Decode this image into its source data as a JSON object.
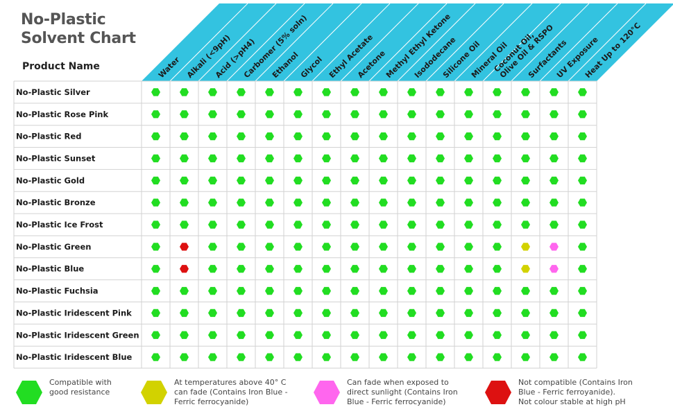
{
  "title_lines": [
    "No-Plastic",
    "Solvent Chart"
  ],
  "product_header": "Product Name",
  "colors": {
    "header_band": "#33c3e0",
    "grid": "#d2d2d2",
    "compatible": "#22dd22",
    "heat": "#d2d200",
    "sunlight": "#ff66ee",
    "incompatible": "#dd1111"
  },
  "chart_data": {
    "type": "table",
    "columns": [
      "Water",
      "Alkali (<9pH)",
      "Acid (>pH4)",
      "Carbomer (5% soln)",
      "Ethanol",
      "Glycol",
      "Ethyl Acetate",
      "Acetone",
      "Methyl Ethyl Ketone",
      "Isododecane",
      "Silicone Oil",
      "Mineral Oil",
      "Coconut Oil,\nOlive Oil & RSPO",
      "Surfactants",
      "UV Exposure",
      "Heat Up to 120°C"
    ],
    "rows": [
      {
        "product": "No-Plastic Silver",
        "status": [
          "C",
          "C",
          "C",
          "C",
          "C",
          "C",
          "C",
          "C",
          "C",
          "C",
          "C",
          "C",
          "C",
          "C",
          "C",
          "C"
        ]
      },
      {
        "product": "No-Plastic Rose Pink",
        "status": [
          "C",
          "C",
          "C",
          "C",
          "C",
          "C",
          "C",
          "C",
          "C",
          "C",
          "C",
          "C",
          "C",
          "C",
          "C",
          "C"
        ]
      },
      {
        "product": "No-Plastic Red",
        "status": [
          "C",
          "C",
          "C",
          "C",
          "C",
          "C",
          "C",
          "C",
          "C",
          "C",
          "C",
          "C",
          "C",
          "C",
          "C",
          "C"
        ]
      },
      {
        "product": "No-Plastic Sunset",
        "status": [
          "C",
          "C",
          "C",
          "C",
          "C",
          "C",
          "C",
          "C",
          "C",
          "C",
          "C",
          "C",
          "C",
          "C",
          "C",
          "C"
        ]
      },
      {
        "product": "No-Plastic Gold",
        "status": [
          "C",
          "C",
          "C",
          "C",
          "C",
          "C",
          "C",
          "C",
          "C",
          "C",
          "C",
          "C",
          "C",
          "C",
          "C",
          "C"
        ]
      },
      {
        "product": "No-Plastic Bronze",
        "status": [
          "C",
          "C",
          "C",
          "C",
          "C",
          "C",
          "C",
          "C",
          "C",
          "C",
          "C",
          "C",
          "C",
          "C",
          "C",
          "C"
        ]
      },
      {
        "product": "No-Plastic Ice Frost",
        "status": [
          "C",
          "C",
          "C",
          "C",
          "C",
          "C",
          "C",
          "C",
          "C",
          "C",
          "C",
          "C",
          "C",
          "C",
          "C",
          "C"
        ]
      },
      {
        "product": "No-Plastic Green",
        "status": [
          "C",
          "N",
          "C",
          "C",
          "C",
          "C",
          "C",
          "C",
          "C",
          "C",
          "C",
          "C",
          "C",
          "H",
          "S",
          "C"
        ]
      },
      {
        "product": "No-Plastic Blue",
        "status": [
          "C",
          "N",
          "C",
          "C",
          "C",
          "C",
          "C",
          "C",
          "C",
          "C",
          "C",
          "C",
          "C",
          "H",
          "S",
          "C"
        ]
      },
      {
        "product": "No-Plastic Fuchsia",
        "status": [
          "C",
          "C",
          "C",
          "C",
          "C",
          "C",
          "C",
          "C",
          "C",
          "C",
          "C",
          "C",
          "C",
          "C",
          "C",
          "C"
        ]
      },
      {
        "product": "No-Plastic Iridescent Pink",
        "status": [
          "C",
          "C",
          "C",
          "C",
          "C",
          "C",
          "C",
          "C",
          "C",
          "C",
          "C",
          "C",
          "C",
          "C",
          "C",
          "C"
        ]
      },
      {
        "product": "No-Plastic Iridescent Green",
        "status": [
          "C",
          "C",
          "C",
          "C",
          "C",
          "C",
          "C",
          "C",
          "C",
          "C",
          "C",
          "C",
          "C",
          "C",
          "C",
          "C"
        ]
      },
      {
        "product": "No-Plastic Iridescent Blue",
        "status": [
          "C",
          "C",
          "C",
          "C",
          "C",
          "C",
          "C",
          "C",
          "C",
          "C",
          "C",
          "C",
          "C",
          "C",
          "C",
          "C"
        ]
      }
    ]
  },
  "legend": [
    {
      "key": "C",
      "text": "Compatible with\ngood resistance"
    },
    {
      "key": "H",
      "text": "At temperatures above 40° C\ncan fade (Contains Iron Blue -\nFerric ferrocyanide)"
    },
    {
      "key": "S",
      "text": "Can fade when exposed to\ndirect sunlight  (Contains Iron\nBlue - Ferric ferrocyanide)"
    },
    {
      "key": "N",
      "text": "Not compatible (Contains Iron\nBlue - Ferric ferroyanide).\nNot colour stable at high pH"
    }
  ]
}
